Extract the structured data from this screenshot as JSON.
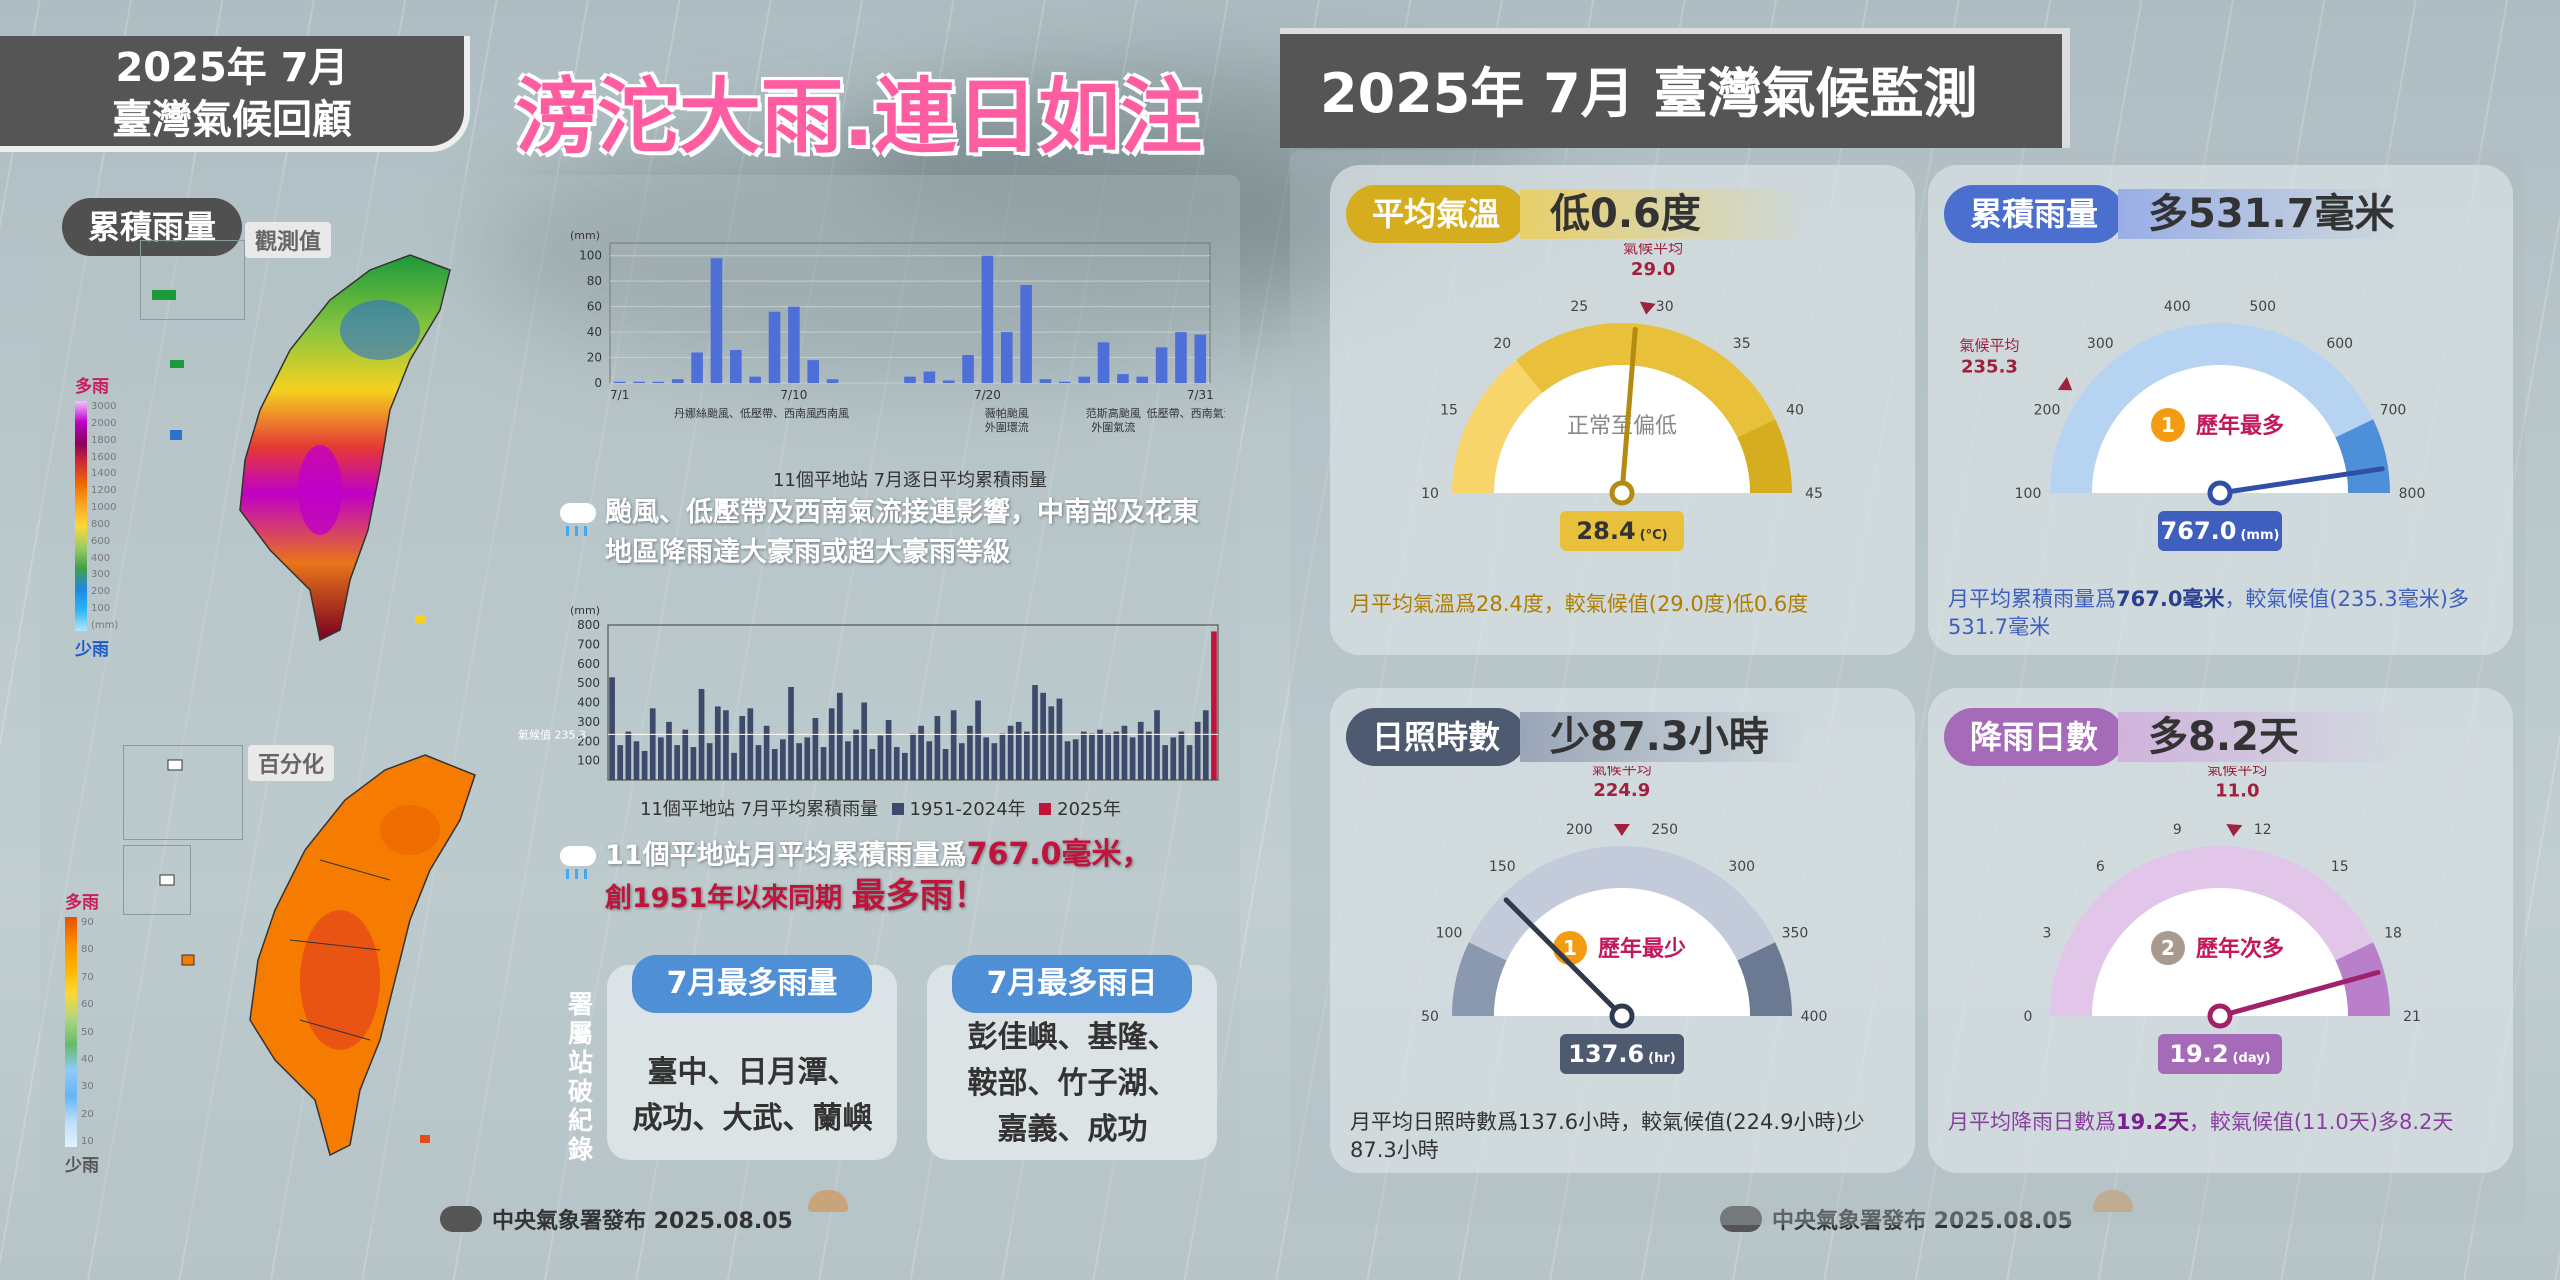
{
  "header": {
    "left_line1": "2025年 7月",
    "left_line2": "臺灣氣候回顧",
    "headline_part1": "滂沱大雨",
    "headline_dot": ".",
    "headline_part2": "連日如注",
    "right_title": "2025年 7月  臺灣氣候監測"
  },
  "maps": {
    "rain_tag": "累積雨量",
    "observed_tag": "觀測值",
    "percent_tag": "百分化",
    "rain_legend_top": "多雨",
    "rain_legend_bottom": "少雨",
    "rain_legend_values": [
      "3000",
      "2000",
      "1800",
      "1600",
      "1400",
      "1200",
      "1000",
      "800",
      "600",
      "400",
      "300",
      "200",
      "100",
      "(mm)"
    ],
    "pct_legend_top": "多雨",
    "pct_legend_bottom": "少雨",
    "pct_legend_values": [
      "90",
      "80",
      "70",
      "60",
      "50",
      "40",
      "30",
      "20",
      "10"
    ]
  },
  "daily_chart": {
    "caption": "11個平地站 7月逐日平均累積雨量",
    "chart_data": {
      "type": "bar",
      "ylabel": "(mm)",
      "yticks": [
        "100",
        "80",
        "60",
        "40",
        "20",
        "0"
      ],
      "ylim": [
        0,
        110
      ],
      "x_tick_labels": [
        "7/1",
        "7/10",
        "7/20",
        "7/31"
      ],
      "annotations": [
        "丹娜絲颱風、低壓帶、西南風",
        "西南風",
        "薇帕颱風\n外圍環流",
        "范斯高颱風\n外圍氣流",
        "低壓帶、西南氣流"
      ],
      "x": [
        1,
        2,
        3,
        4,
        5,
        6,
        7,
        8,
        9,
        10,
        11,
        12,
        13,
        14,
        15,
        16,
        17,
        18,
        19,
        20,
        21,
        22,
        23,
        24,
        25,
        26,
        27,
        28,
        29,
        30,
        31
      ],
      "values": [
        1,
        1,
        1,
        3,
        24,
        98,
        26,
        5,
        56,
        60,
        18,
        3,
        0,
        0,
        0,
        5,
        9,
        2,
        22,
        100,
        40,
        77,
        3,
        1,
        5,
        32,
        7,
        5,
        28,
        40,
        38
      ]
    }
  },
  "monthly_chart": {
    "caption": "11個平地站 7月平均累積雨量",
    "legend_hist": "1951-2024年",
    "legend_2025": "2025年",
    "climate_label": "氣候值 235.3",
    "chart_data": {
      "type": "bar",
      "ylabel": "(mm)",
      "yticks": [
        "800",
        "700",
        "600",
        "500",
        "400",
        "300",
        "200",
        "100"
      ],
      "ylim": [
        0,
        800
      ],
      "climate_value": 235.3,
      "values": [
        530,
        180,
        250,
        200,
        150,
        370,
        220,
        300,
        180,
        260,
        170,
        470,
        190,
        380,
        360,
        140,
        330,
        370,
        180,
        280,
        160,
        210,
        480,
        190,
        220,
        320,
        170,
        370,
        450,
        200,
        260,
        400,
        160,
        230,
        310,
        170,
        140,
        240,
        280,
        200,
        330,
        160,
        360,
        190,
        280,
        410,
        220,
        190,
        240,
        280,
        300,
        250,
        490,
        450,
        380,
        420,
        200,
        210,
        250,
        240,
        260,
        240,
        250,
        280,
        220,
        300,
        250,
        360,
        180,
        220,
        250,
        180,
        300,
        360
      ],
      "value_2025": 767.0
    }
  },
  "notes": {
    "note1": "颱風、低壓帶及西南氣流接連影響，中南部及花東地區降雨達大豪雨或超大豪雨等級",
    "note2_a": "11個平地站月平均累積雨量爲",
    "note2_b": "767.0毫米，",
    "note2_c": "創1951年以來同期",
    "note2_d": "最多雨！"
  },
  "records": {
    "side_label": "署屬站破紀錄",
    "most_rain_title": "7月最多雨量",
    "most_rain_body": "臺中、日月潭、\n成功、大武、蘭嶼",
    "most_days_title": "7月最多雨日",
    "most_days_body": "彭佳嶼、基隆、\n鞍部、竹子湖、\n嘉義、成功"
  },
  "footer": {
    "left": "中央氣象署發布 2025.08.05",
    "right": "中央氣象署發布 2025.08.05"
  },
  "cards": {
    "temp": {
      "title": "平均氣溫",
      "diff": "低0.6度",
      "climate_label": "氣候平均",
      "climate_value": "29.0",
      "status": "正常至偏低",
      "value": "28.4",
      "unit": "(°C)",
      "ticks": [
        "10",
        "15",
        "20",
        "25",
        "30",
        "35",
        "40",
        "45"
      ],
      "range": [
        10,
        45
      ],
      "current": 28.4,
      "climate": 29.0,
      "desc": "月平均氣溫爲28.4度，較氣候值(29.0度)低0.6度",
      "color": "#d6ad1f"
    },
    "rain": {
      "title": "累積雨量",
      "diff": "多531.7毫米",
      "climate_label": "氣候平均",
      "climate_value": "235.3",
      "rank_num": "1",
      "rank_text": "歷年最多",
      "value": "767.0",
      "unit": "(mm)",
      "ticks": [
        "100",
        "200",
        "300",
        "400",
        "500",
        "600",
        "700",
        "800"
      ],
      "range": [
        100,
        800
      ],
      "current": 767.0,
      "climate": 235.3,
      "desc_a": "月平均累積雨量爲",
      "desc_b": "767.0毫米",
      "desc_c": "，較氣候值(235.3毫米)多531.7毫米",
      "color": "#4a6fcf"
    },
    "sun": {
      "title": "日照時數",
      "diff": "少87.3小時",
      "climate_label": "氣候平均",
      "climate_value": "224.9",
      "rank_num": "1",
      "rank_text": "歷年最少",
      "value": "137.6",
      "unit": "(hr)",
      "ticks": [
        "50",
        "100",
        "150",
        "200",
        "250",
        "300",
        "350",
        "400"
      ],
      "range": [
        50,
        400
      ],
      "current": 137.6,
      "climate": 224.9,
      "desc": "月平均日照時數爲137.6小時，較氣候值(224.9小時)少87.3小時",
      "color": "#4d5a70"
    },
    "days": {
      "title": "降雨日數",
      "diff": "多8.2天",
      "climate_label": "氣候平均",
      "climate_value": "11.0",
      "rank_num": "2",
      "rank_text": "歷年次多",
      "value": "19.2",
      "unit": "(day)",
      "ticks": [
        "0",
        "3",
        "6",
        "9",
        "12",
        "15",
        "18",
        "21"
      ],
      "range": [
        0,
        21
      ],
      "current": 19.2,
      "climate": 11.0,
      "desc_a": "月平均降雨日數爲",
      "desc_b": "19.2天",
      "desc_c": "，較氣候值(11.0天)多8.2天",
      "color": "#a66bb8"
    }
  },
  "colors": {
    "headline_pink": "#ff5da2",
    "record_red": "#c0143c",
    "header_gray": "#555555",
    "bar_blue": "#4f6fd8",
    "bar_navy": "#3d4a6b"
  }
}
